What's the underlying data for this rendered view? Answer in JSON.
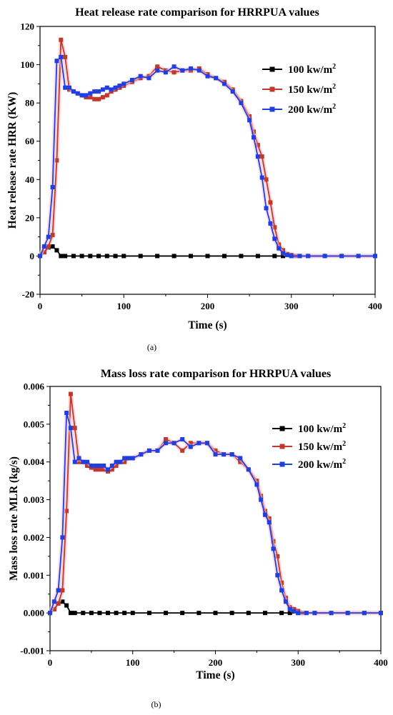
{
  "chart_data": [
    {
      "type": "line",
      "panel_label": "(a)",
      "title": "Heat release rate comparison for HRRPUA values",
      "xlabel": "Time (s)",
      "ylabel": "Heat release rate HRR (KW)",
      "xlim": [
        0,
        400
      ],
      "ylim": [
        -20,
        120
      ],
      "xticks": [
        "0",
        "100",
        "200",
        "300",
        "400"
      ],
      "yticks": [
        "-20",
        "0",
        "20",
        "40",
        "60",
        "80",
        "100",
        "120"
      ],
      "xtick_values": [
        0,
        100,
        200,
        300,
        400
      ],
      "ytick_values": [
        -20,
        0,
        20,
        40,
        60,
        80,
        100,
        120
      ],
      "legend_position": "top-right",
      "series": [
        {
          "name": "100 kw/m2",
          "name_base": "100 kw/m",
          "name_sup": "2",
          "color": "#000000",
          "x": [
            0,
            5,
            10,
            15,
            20,
            25,
            30,
            40,
            50,
            60,
            70,
            80,
            90,
            100,
            120,
            140,
            160,
            180,
            200,
            220,
            240,
            260,
            280,
            290,
            300,
            320,
            340,
            360,
            380,
            400
          ],
          "y": [
            0,
            2,
            4.5,
            5,
            3,
            0,
            0,
            0,
            0,
            0,
            0,
            0,
            0,
            0,
            0,
            0,
            0,
            0,
            0,
            0,
            0,
            0,
            0,
            0,
            0,
            0,
            0,
            0,
            0,
            0
          ]
        },
        {
          "name": "150 kw/m2",
          "name_base": "150 kw/m",
          "name_sup": "2",
          "color": "#c0392b",
          "x": [
            0,
            5,
            10,
            15,
            20,
            25,
            30,
            35,
            40,
            45,
            50,
            55,
            60,
            65,
            70,
            75,
            80,
            85,
            90,
            95,
            100,
            110,
            120,
            130,
            140,
            150,
            160,
            170,
            180,
            190,
            200,
            210,
            220,
            230,
            240,
            250,
            255,
            260,
            265,
            270,
            275,
            280,
            285,
            290,
            295,
            300,
            305,
            310,
            320,
            340,
            360,
            380,
            400
          ],
          "y": [
            0,
            2,
            5,
            11,
            50,
            113,
            104,
            87,
            86,
            85,
            84,
            83,
            83,
            82,
            82,
            83,
            84,
            86,
            87,
            88,
            89,
            91,
            93,
            94,
            99,
            97,
            96,
            97,
            97,
            98,
            95,
            93,
            91,
            87,
            81,
            73,
            65,
            58,
            52,
            40,
            28,
            15,
            6,
            3,
            1,
            0.5,
            0,
            0,
            0,
            0,
            0,
            0,
            0
          ]
        },
        {
          "name": "200 kw/m2",
          "name_base": "200 kw/m",
          "name_sup": "2",
          "color": "#1f3fe0",
          "x": [
            0,
            5,
            10,
            15,
            20,
            25,
            30,
            35,
            40,
            45,
            50,
            55,
            60,
            65,
            70,
            75,
            80,
            85,
            90,
            95,
            100,
            110,
            120,
            130,
            140,
            150,
            160,
            170,
            180,
            190,
            200,
            210,
            220,
            230,
            240,
            250,
            255,
            260,
            265,
            270,
            275,
            280,
            285,
            290,
            295,
            300,
            310,
            320,
            340,
            360,
            380,
            400
          ],
          "y": [
            0,
            5,
            10,
            36,
            102,
            104,
            88,
            88,
            86,
            85,
            84,
            84,
            85,
            86,
            86,
            87,
            88,
            87,
            88,
            89,
            90,
            92,
            94,
            93,
            97,
            96,
            99,
            97,
            98,
            97,
            94,
            93,
            90,
            86,
            80,
            71,
            62,
            52,
            41,
            25,
            17,
            9,
            4,
            1.5,
            0.5,
            0,
            0,
            0,
            0,
            0,
            0,
            0
          ]
        }
      ]
    },
    {
      "type": "line",
      "panel_label": "(b)",
      "title": "Mass loss rate comparison for HRRPUA values",
      "xlabel": "Time (s)",
      "ylabel": "Mass loss rate MLR (kg/s)",
      "xlim": [
        0,
        400
      ],
      "ylim": [
        -0.001,
        0.006
      ],
      "xticks": [
        "0",
        "100",
        "200",
        "300",
        "400"
      ],
      "yticks": [
        "-0.001",
        "0.000",
        "0.001",
        "0.002",
        "0.003",
        "0.004",
        "0.005",
        "0.006"
      ],
      "xtick_values": [
        0,
        100,
        200,
        300,
        400
      ],
      "ytick_values": [
        -0.001,
        0,
        0.001,
        0.002,
        0.003,
        0.004,
        0.005,
        0.006
      ],
      "legend_position": "top-right",
      "series": [
        {
          "name": "100 kw/m2",
          "name_base": "100 kw/m",
          "name_sup": "2",
          "color": "#000000",
          "x": [
            0,
            5,
            10,
            15,
            20,
            25,
            30,
            40,
            50,
            60,
            70,
            80,
            90,
            100,
            120,
            140,
            160,
            180,
            200,
            220,
            240,
            260,
            280,
            290,
            300,
            320,
            340,
            360,
            380,
            400
          ],
          "y": [
            0,
            0.0001,
            0.00025,
            0.0003,
            0.0002,
            0,
            0,
            0,
            0,
            0,
            0,
            0,
            0,
            0,
            0,
            0,
            0,
            0,
            0,
            0,
            0,
            0,
            0,
            0,
            0,
            0,
            0,
            0,
            0,
            0
          ]
        },
        {
          "name": "150 kw/m2",
          "name_base": "150 kw/m",
          "name_sup": "2",
          "color": "#c0392b",
          "x": [
            0,
            5,
            10,
            15,
            20,
            25,
            30,
            35,
            40,
            45,
            50,
            55,
            60,
            65,
            70,
            75,
            80,
            85,
            90,
            95,
            100,
            110,
            120,
            130,
            140,
            150,
            160,
            170,
            180,
            190,
            200,
            210,
            220,
            230,
            240,
            250,
            255,
            260,
            265,
            270,
            275,
            280,
            285,
            290,
            295,
            300,
            305,
            310,
            320,
            340,
            360,
            380,
            400
          ],
          "y": [
            0,
            0.0001,
            0.00025,
            0.0006,
            0.0027,
            0.0058,
            0.0049,
            0.004,
            0.004,
            0.0039,
            0.00385,
            0.0038,
            0.0038,
            0.0038,
            0.00375,
            0.0038,
            0.0039,
            0.004,
            0.004,
            0.0041,
            0.0041,
            0.0042,
            0.0043,
            0.0043,
            0.0046,
            0.0045,
            0.0043,
            0.0045,
            0.0045,
            0.0045,
            0.0043,
            0.0042,
            0.0042,
            0.004,
            0.0038,
            0.0035,
            0.0031,
            0.0027,
            0.0025,
            0.0019,
            0.0015,
            0.0008,
            0.0004,
            0.00015,
            0.0001,
            5e-05,
            0,
            0,
            0,
            0,
            0,
            0,
            0
          ]
        },
        {
          "name": "200 kw/m2",
          "name_base": "200 kw/m",
          "name_sup": "2",
          "color": "#1f3fe0",
          "x": [
            0,
            5,
            10,
            15,
            20,
            25,
            30,
            35,
            40,
            45,
            50,
            55,
            60,
            65,
            70,
            75,
            80,
            85,
            90,
            95,
            100,
            110,
            120,
            130,
            140,
            150,
            160,
            170,
            180,
            190,
            200,
            210,
            220,
            230,
            240,
            250,
            255,
            260,
            265,
            270,
            275,
            280,
            285,
            290,
            295,
            300,
            310,
            320,
            340,
            360,
            380,
            400
          ],
          "y": [
            0,
            0.0003,
            0.0006,
            0.002,
            0.0053,
            0.0049,
            0.004,
            0.0041,
            0.004,
            0.004,
            0.0039,
            0.0039,
            0.0039,
            0.0039,
            0.0038,
            0.0039,
            0.004,
            0.004,
            0.0041,
            0.0041,
            0.0041,
            0.0042,
            0.0043,
            0.0043,
            0.0045,
            0.0045,
            0.0046,
            0.0044,
            0.0045,
            0.0045,
            0.0042,
            0.0042,
            0.0042,
            0.0041,
            0.0038,
            0.0034,
            0.003,
            0.0026,
            0.0024,
            0.0017,
            0.001,
            0.0006,
            0.0003,
            0.0001,
            5e-05,
            0,
            0,
            0,
            0,
            0,
            0,
            0
          ]
        }
      ]
    }
  ]
}
